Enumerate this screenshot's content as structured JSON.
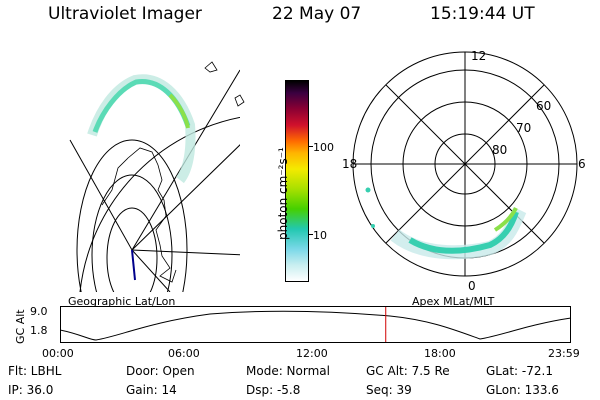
{
  "header": {
    "title": "Ultraviolet Imager",
    "date": "22 May 07",
    "time": "15:19:44 UT"
  },
  "geo_panel": {
    "label": "Geographic Lat/Lon"
  },
  "apex_panel": {
    "label": "Apex MLat/MLT",
    "mlt_labels": {
      "top": "12",
      "left": "18",
      "right": "6",
      "bottom": "0"
    },
    "lat_labels": [
      "60",
      "70",
      "80"
    ]
  },
  "colorbar": {
    "unit_label": "photon cm⁻²s⁻¹",
    "ticks": [
      "100",
      "10"
    ],
    "scale": "log"
  },
  "altitude_plot": {
    "ylabel": "GC Alt",
    "yticks": [
      "9.0",
      "1.8"
    ],
    "xticks": [
      "00:00",
      "06:00",
      "12:00",
      "18:00",
      "23:59"
    ],
    "current_time_fraction": 0.638,
    "marker_color": "#d00000"
  },
  "info": {
    "flt": "Flt: LBHL",
    "ip": "IP: 36.0",
    "door": "Door: Open",
    "gain": "Gain: 14",
    "mode": "Mode: Normal",
    "dsp": "Dsp:   -5.8",
    "gcalt": "GC Alt: 7.5 Re",
    "seq": "Seq: 39",
    "glat": "GLat: -72.1",
    "glon": "GLon: 133.6"
  }
}
